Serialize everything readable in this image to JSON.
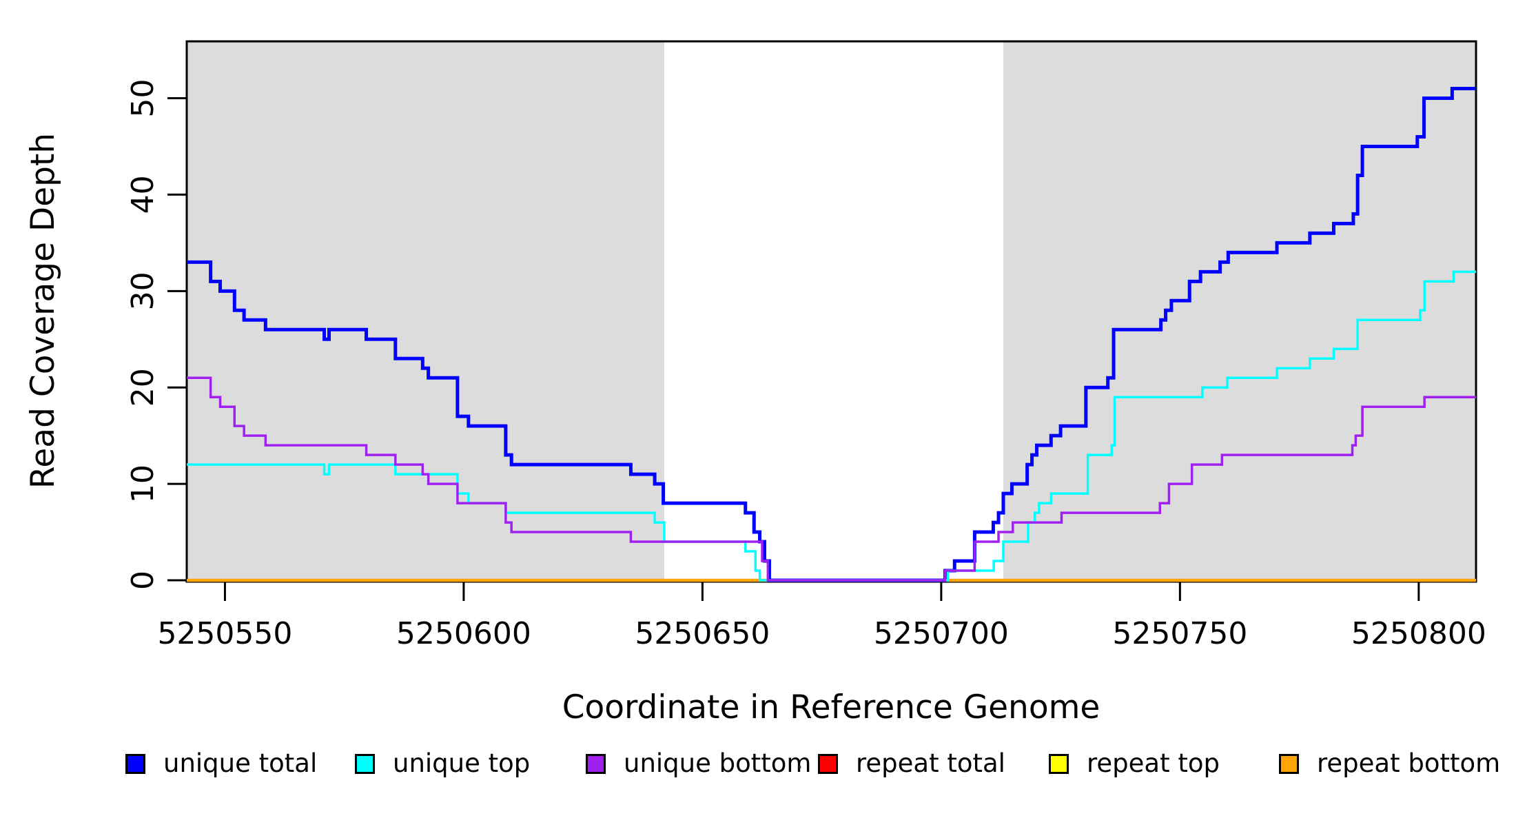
{
  "chart_data": {
    "type": "line",
    "subtype": "step",
    "xlabel": "Coordinate in Reference Genome",
    "ylabel": "Read Coverage Depth",
    "xlim": [
      5250542,
      5250812
    ],
    "ylim": [
      0,
      55.9
    ],
    "grid": false,
    "x_ticks": {
      "values": [
        5250550,
        5250600,
        5250650,
        5250700,
        5250750,
        5250800
      ],
      "labels": [
        "5250550",
        "5250600",
        "5250650",
        "5250700",
        "5250750",
        "5250800"
      ]
    },
    "y_ticks": {
      "values": [
        0,
        10,
        20,
        30,
        40,
        50
      ],
      "labels": [
        "0",
        "10",
        "20",
        "30",
        "40",
        "50"
      ]
    },
    "shaded_regions": {
      "color": "#DCDCDC",
      "ranges": [
        [
          5250542,
          5250642
        ],
        [
          5250713,
          5250812
        ]
      ]
    },
    "axis_color": "#000000",
    "series": [
      {
        "name": "repeat total",
        "color": "#FF0000",
        "width": 3,
        "points": [
          [
            5250542,
            0
          ]
        ]
      },
      {
        "name": "repeat top",
        "color": "#FFFF00",
        "width": 3,
        "points": [
          [
            5250542,
            0
          ]
        ]
      },
      {
        "name": "repeat bottom",
        "color": "#FFA500",
        "width": 4.5,
        "points": [
          [
            5250542,
            0
          ]
        ]
      },
      {
        "name": "unique total",
        "color": "#0000FF",
        "width": 5,
        "points": [
          [
            5250542,
            33
          ],
          [
            5250547,
            31
          ],
          [
            5250549,
            30
          ],
          [
            5250552,
            28
          ],
          [
            5250554,
            27
          ],
          [
            5250558.5,
            26
          ],
          [
            5250570.8,
            25
          ],
          [
            5250571.8,
            26
          ],
          [
            5250579.6,
            25
          ],
          [
            5250585.7,
            23
          ],
          [
            5250591.4,
            22
          ],
          [
            5250592.6,
            21
          ],
          [
            5250598.7,
            17
          ],
          [
            5250601,
            16
          ],
          [
            5250608.8,
            13
          ],
          [
            5250610,
            12
          ],
          [
            5250635,
            11
          ],
          [
            5250640,
            10
          ],
          [
            5250641.8,
            8
          ],
          [
            5250659,
            7
          ],
          [
            5250660.8,
            5
          ],
          [
            5250662,
            4
          ],
          [
            5250663,
            2
          ],
          [
            5250664,
            0
          ],
          [
            5250700.8,
            1
          ],
          [
            5250702.8,
            2
          ],
          [
            5250707,
            5
          ],
          [
            5250710.9,
            6
          ],
          [
            5250712,
            7
          ],
          [
            5250713,
            9
          ],
          [
            5250714.8,
            10
          ],
          [
            5250718,
            12
          ],
          [
            5250719,
            13
          ],
          [
            5250720,
            14
          ],
          [
            5250723,
            15
          ],
          [
            5250725,
            16
          ],
          [
            5250730.3,
            20
          ],
          [
            5250734.9,
            21
          ],
          [
            5250736.1,
            26
          ],
          [
            5250746,
            27
          ],
          [
            5250747,
            28
          ],
          [
            5250748.2,
            29
          ],
          [
            5250752,
            31
          ],
          [
            5250754.3,
            32
          ],
          [
            5250758.4,
            33
          ],
          [
            5250760.1,
            34
          ],
          [
            5250770.3,
            35
          ],
          [
            5250777.2,
            36
          ],
          [
            5250782.2,
            37
          ],
          [
            5250786.3,
            38
          ],
          [
            5250787.2,
            42
          ],
          [
            5250788.2,
            45
          ],
          [
            5250799.7,
            46
          ],
          [
            5250801.1,
            50
          ],
          [
            5250807,
            51
          ]
        ]
      },
      {
        "name": "unique top",
        "color": "#00FFFF",
        "width": 3.5,
        "points": [
          [
            5250542,
            12
          ],
          [
            5250570.8,
            11
          ],
          [
            5250571.8,
            12
          ],
          [
            5250585.7,
            11
          ],
          [
            5250598.7,
            9
          ],
          [
            5250601,
            8
          ],
          [
            5250608.8,
            7
          ],
          [
            5250640,
            6
          ],
          [
            5250642,
            4
          ],
          [
            5250659,
            3
          ],
          [
            5250661.1,
            1
          ],
          [
            5250662,
            0
          ],
          [
            5250701.4,
            1
          ],
          [
            5250711,
            2
          ],
          [
            5250713,
            4
          ],
          [
            5250718.2,
            6
          ],
          [
            5250719.6,
            7
          ],
          [
            5250720.5,
            8
          ],
          [
            5250723,
            9
          ],
          [
            5250730.7,
            13
          ],
          [
            5250735.7,
            14
          ],
          [
            5250736.3,
            19
          ],
          [
            5250754.7,
            20
          ],
          [
            5250759.9,
            21
          ],
          [
            5250770.3,
            22
          ],
          [
            5250777.2,
            23
          ],
          [
            5250782.2,
            24
          ],
          [
            5250787.2,
            27
          ],
          [
            5250800.3,
            28
          ],
          [
            5250801.2,
            31
          ],
          [
            5250807.3,
            32
          ]
        ]
      },
      {
        "name": "unique bottom",
        "color": "#A020F0",
        "width": 3.5,
        "points": [
          [
            5250542,
            21
          ],
          [
            5250547,
            19
          ],
          [
            5250549,
            18
          ],
          [
            5250552,
            16
          ],
          [
            5250554,
            15
          ],
          [
            5250558.5,
            14
          ],
          [
            5250579.6,
            13
          ],
          [
            5250585.7,
            12
          ],
          [
            5250591.4,
            11
          ],
          [
            5250592.6,
            10
          ],
          [
            5250598.7,
            8
          ],
          [
            5250608.8,
            6
          ],
          [
            5250610,
            5
          ],
          [
            5250635,
            4
          ],
          [
            5250662.5,
            2
          ],
          [
            5250663.7,
            0
          ],
          [
            5250700.8,
            1
          ],
          [
            5250707,
            4
          ],
          [
            5250712,
            5
          ],
          [
            5250715,
            6
          ],
          [
            5250725.2,
            7
          ],
          [
            5250745.8,
            8
          ],
          [
            5250747.7,
            10
          ],
          [
            5250752.5,
            12
          ],
          [
            5250758.8,
            13
          ],
          [
            5250786.1,
            14
          ],
          [
            5250786.8,
            15
          ],
          [
            5250788.2,
            18
          ],
          [
            5250801.2,
            19
          ]
        ]
      }
    ]
  },
  "legend": {
    "items": [
      {
        "label": "unique total",
        "color": "#0000FF"
      },
      {
        "label": "unique top",
        "color": "#00FFFF"
      },
      {
        "label": "unique bottom",
        "color": "#A020F0"
      },
      {
        "label": "repeat total",
        "color": "#FF0000"
      },
      {
        "label": "repeat top",
        "color": "#FFFF00"
      },
      {
        "label": "repeat bottom",
        "color": "#FFA500"
      }
    ]
  },
  "stray_mark": "."
}
